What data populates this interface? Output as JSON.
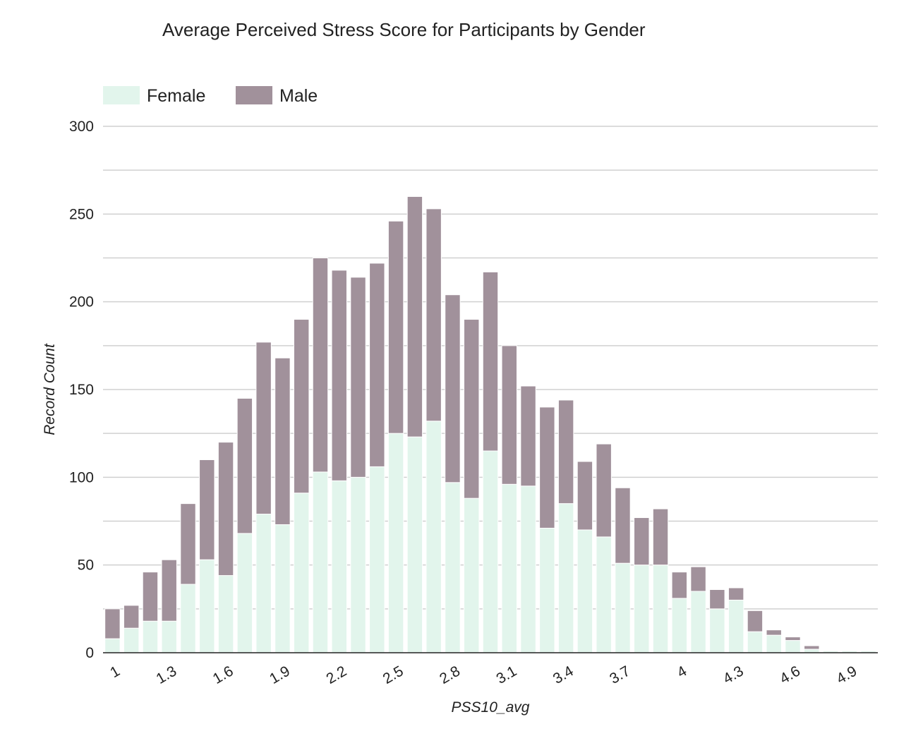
{
  "chart_data": {
    "type": "bar",
    "stacked": true,
    "title": "Average Perceived Stress Score for Participants by Gender",
    "xlabel": "PSS10_avg",
    "ylabel": "Record Count",
    "ylim": [
      0,
      300
    ],
    "y_ticks": [
      0,
      50,
      100,
      150,
      200,
      250,
      300
    ],
    "grid": true,
    "legend_position": "top-left",
    "x_tick_labels": [
      "1",
      "1.3",
      "1.6",
      "1.9",
      "2.2",
      "2.5",
      "2.8",
      "3.1",
      "3.4",
      "3.7",
      "4",
      "4.3",
      "4.6",
      "4.9"
    ],
    "categories": [
      "1",
      "1.1",
      "1.2",
      "1.3",
      "1.4",
      "1.5",
      "1.6",
      "1.7",
      "1.8",
      "1.9",
      "2",
      "2.1",
      "2.2",
      "2.3",
      "2.4",
      "2.5",
      "2.6",
      "2.7",
      "2.8",
      "2.9",
      "3",
      "3.1",
      "3.2",
      "3.3",
      "3.4",
      "3.5",
      "3.6",
      "3.7",
      "3.8",
      "3.9",
      "4",
      "4.1",
      "4.2",
      "4.3",
      "4.4",
      "4.5",
      "4.6",
      "4.7",
      "4.8",
      "4.9",
      "5"
    ],
    "series": [
      {
        "name": "Female",
        "color": "#e2f5ec",
        "values": [
          8,
          14,
          18,
          18,
          39,
          53,
          44,
          68,
          79,
          73,
          91,
          103,
          98,
          100,
          106,
          125,
          123,
          132,
          97,
          88,
          115,
          96,
          95,
          71,
          85,
          70,
          66,
          51,
          50,
          50,
          31,
          35,
          25,
          30,
          12,
          10,
          7,
          2,
          1,
          1,
          1
        ]
      },
      {
        "name": "Male",
        "color": "#a1919b",
        "values": [
          17,
          13,
          28,
          35,
          46,
          57,
          76,
          77,
          98,
          95,
          99,
          122,
          120,
          114,
          116,
          121,
          137,
          121,
          107,
          102,
          102,
          79,
          57,
          69,
          59,
          39,
          53,
          43,
          27,
          32,
          15,
          14,
          11,
          7,
          12,
          3,
          2,
          2,
          0,
          0,
          0
        ]
      }
    ]
  }
}
